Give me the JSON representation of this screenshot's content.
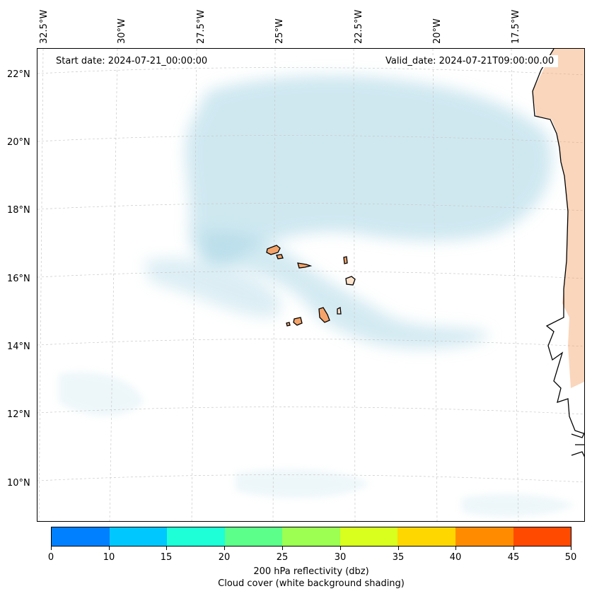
{
  "map": {
    "start_label": "Start date: 2024-07-21_00:00:00",
    "valid_label": "Valid_date: 2024-07-21T09:00:00.00",
    "lon_labels": [
      "32.5°W",
      "30°W",
      "27.5°W",
      "25°W",
      "22.5°W",
      "20°W",
      "17.5°W"
    ],
    "lat_labels": [
      "22°N",
      "20°N",
      "18°N",
      "16°N",
      "14°N",
      "12°N",
      "10°N"
    ],
    "cloud_color": "#a9d6e5",
    "land_color": "#f4a46a",
    "gridline_color": "#c8c8c8"
  },
  "colorbar": {
    "colors": [
      "#0080ff",
      "#00c8ff",
      "#1effd8",
      "#5cff8a",
      "#9cff52",
      "#d8ff1e",
      "#ffd700",
      "#ff8c00",
      "#ff4a00"
    ],
    "ticks": [
      "0",
      "10",
      "15",
      "20",
      "25",
      "30",
      "35",
      "40",
      "45",
      "50"
    ],
    "label": "200 hPa reflectivity (dbz)",
    "sublabel": "Cloud cover (white background shading)"
  }
}
